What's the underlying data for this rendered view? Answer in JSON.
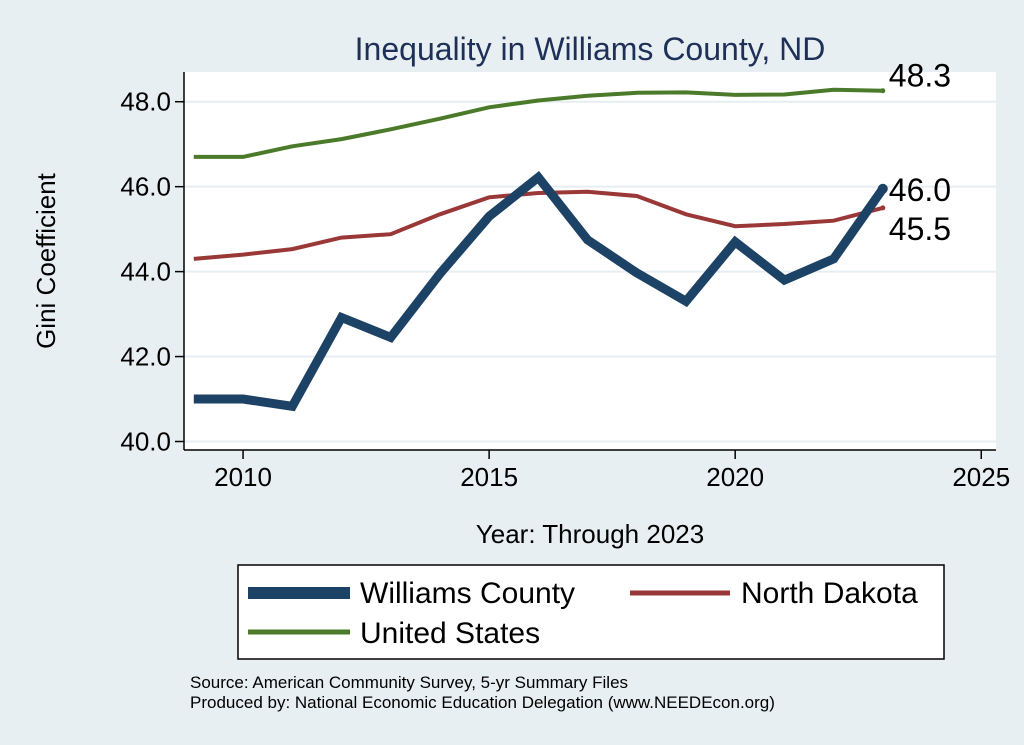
{
  "chart_data": {
    "type": "line",
    "title": "Inequality in Williams County, ND",
    "xlabel": "Year: Through 2023",
    "ylabel": "Gini Coefficient",
    "xlim": [
      2008.8,
      2025.3
    ],
    "ylim": [
      39.8,
      48.7
    ],
    "x_ticks": [
      2010,
      2015,
      2020,
      2025
    ],
    "y_ticks": [
      40.0,
      42.0,
      44.0,
      46.0,
      48.0
    ],
    "y_tick_labels": [
      "40.0",
      "42.0",
      "44.0",
      "46.0",
      "48.0"
    ],
    "x": [
      2009,
      2010,
      2011,
      2012,
      2013,
      2014,
      2015,
      2016,
      2017,
      2018,
      2019,
      2020,
      2021,
      2022,
      2023
    ],
    "series": [
      {
        "name": "United States",
        "color": "#4a7a2a",
        "values": [
          46.7,
          46.7,
          46.95,
          47.12,
          47.35,
          47.6,
          47.87,
          48.03,
          48.14,
          48.21,
          48.22,
          48.16,
          48.17,
          48.28,
          48.26
        ],
        "end_label": "48.3"
      },
      {
        "name": "North Dakota",
        "color": "#9a3838",
        "values": [
          44.3,
          44.4,
          44.53,
          44.8,
          44.88,
          45.35,
          45.75,
          45.85,
          45.88,
          45.78,
          45.35,
          45.07,
          45.12,
          45.2,
          45.5
        ],
        "end_label": "45.5"
      },
      {
        "name": "Williams County",
        "color": "#1c4266",
        "values": [
          41.0,
          41.0,
          40.83,
          42.92,
          42.45,
          43.95,
          45.3,
          46.22,
          44.75,
          43.97,
          43.3,
          44.7,
          43.8,
          44.3,
          45.95
        ],
        "end_label": "46.0"
      }
    ],
    "legend": {
      "placement": "bottom",
      "entries": [
        "Williams County",
        "North Dakota",
        "United States"
      ]
    },
    "grid": true
  },
  "footer": {
    "source": "Source: American Community Survey, 5-yr Summary Files",
    "produced_by": "Produced by: National Economic Education Delegation (www.NEEDEcon.org)"
  }
}
